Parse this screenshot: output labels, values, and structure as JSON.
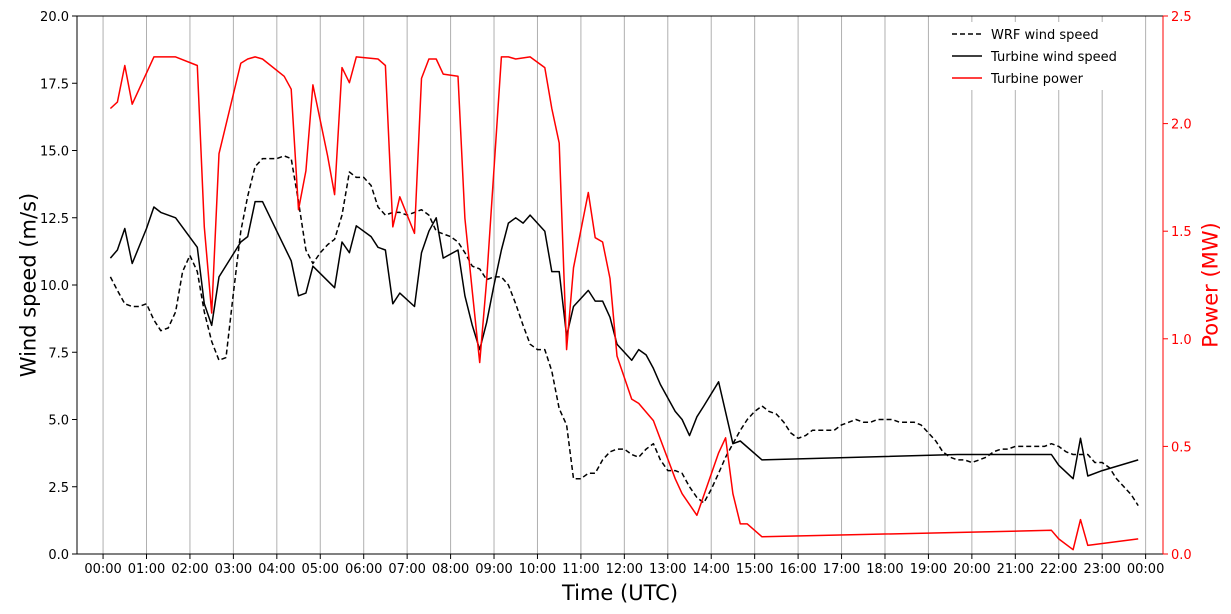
{
  "chart_data": {
    "type": "line",
    "xlabel": "Time (UTC)",
    "ylabel_left": "Wind speed (m/s)",
    "ylabel_right": "Power (MW)",
    "x_unit": "hours",
    "xlim": [
      -0.6,
      24.4
    ],
    "ylim_left": [
      0,
      20
    ],
    "ylim_right": [
      0,
      2.5
    ],
    "grid": "vertical",
    "legend_placement": "top-right",
    "x_ticks": [
      0,
      1,
      2,
      3,
      4,
      5,
      6,
      7,
      8,
      9,
      10,
      11,
      12,
      13,
      14,
      15,
      16,
      17,
      18,
      19,
      20,
      21,
      22,
      23,
      24
    ],
    "x_tick_labels": [
      "00:00",
      "01:00",
      "02:00",
      "03:00",
      "04:00",
      "05:00",
      "06:00",
      "07:00",
      "08:00",
      "09:00",
      "10:00",
      "11:00",
      "12:00",
      "13:00",
      "14:00",
      "15:00",
      "16:00",
      "17:00",
      "18:00",
      "19:00",
      "20:00",
      "21:00",
      "22:00",
      "23:00",
      "00:00"
    ],
    "y_left_ticks": [
      0,
      2.5,
      5,
      7.5,
      10,
      12.5,
      15,
      17.5,
      20
    ],
    "y_left_tick_labels": [
      "0.0",
      "2.5",
      "5.0",
      "7.5",
      "10.0",
      "12.5",
      "15.0",
      "17.5",
      "20.0"
    ],
    "y_right_ticks": [
      0,
      0.5,
      1,
      1.5,
      2,
      2.5
    ],
    "y_right_tick_labels": [
      "0.0",
      "0.5",
      "1.0",
      "1.5",
      "2.0",
      "2.5"
    ],
    "colors": {
      "wrf": "#000000",
      "turbine_ws": "#000000",
      "turbine_power": "#ff0000",
      "axis_right": "#ff0000",
      "grid": "#b0b0b0"
    },
    "series": [
      {
        "name": "WRF wind speed",
        "axis": "left",
        "style": "dashed",
        "color": "#000000",
        "points": [
          [
            0.17,
            10.3
          ],
          [
            0.33,
            9.8
          ],
          [
            0.5,
            9.3
          ],
          [
            0.67,
            9.2
          ],
          [
            0.83,
            9.2
          ],
          [
            1.0,
            9.3
          ],
          [
            1.17,
            8.7
          ],
          [
            1.33,
            8.3
          ],
          [
            1.5,
            8.4
          ],
          [
            1.67,
            9.0
          ],
          [
            1.83,
            10.5
          ],
          [
            2.0,
            11.1
          ],
          [
            2.17,
            10.5
          ],
          [
            2.33,
            9.0
          ],
          [
            2.5,
            7.9
          ],
          [
            2.67,
            7.2
          ],
          [
            2.83,
            7.3
          ],
          [
            3.0,
            9.7
          ],
          [
            3.17,
            12.0
          ],
          [
            3.33,
            13.3
          ],
          [
            3.5,
            14.4
          ],
          [
            3.67,
            14.7
          ],
          [
            3.83,
            14.7
          ],
          [
            4.0,
            14.7
          ],
          [
            4.17,
            14.8
          ],
          [
            4.33,
            14.7
          ],
          [
            4.5,
            13.1
          ],
          [
            4.67,
            11.3
          ],
          [
            4.83,
            10.8
          ],
          [
            5.0,
            11.2
          ],
          [
            5.17,
            11.5
          ],
          [
            5.33,
            11.7
          ],
          [
            5.5,
            12.6
          ],
          [
            5.67,
            14.2
          ],
          [
            5.83,
            14.0
          ],
          [
            6.0,
            14.0
          ],
          [
            6.17,
            13.7
          ],
          [
            6.33,
            12.9
          ],
          [
            6.5,
            12.6
          ],
          [
            6.67,
            12.7
          ],
          [
            6.83,
            12.7
          ],
          [
            7.0,
            12.6
          ],
          [
            7.17,
            12.7
          ],
          [
            7.33,
            12.8
          ],
          [
            7.5,
            12.6
          ],
          [
            7.67,
            12.0
          ],
          [
            7.83,
            11.9
          ],
          [
            8.0,
            11.8
          ],
          [
            8.17,
            11.6
          ],
          [
            8.33,
            11.2
          ],
          [
            8.5,
            10.7
          ],
          [
            8.67,
            10.6
          ],
          [
            8.83,
            10.2
          ],
          [
            9.0,
            10.3
          ],
          [
            9.17,
            10.3
          ],
          [
            9.33,
            10.0
          ],
          [
            9.5,
            9.3
          ],
          [
            9.67,
            8.5
          ],
          [
            9.83,
            7.8
          ],
          [
            10.0,
            7.6
          ],
          [
            10.17,
            7.6
          ],
          [
            10.33,
            6.8
          ],
          [
            10.5,
            5.4
          ],
          [
            10.67,
            4.8
          ],
          [
            10.83,
            2.8
          ],
          [
            11.0,
            2.8
          ],
          [
            11.17,
            3.0
          ],
          [
            11.33,
            3.0
          ],
          [
            11.5,
            3.5
          ],
          [
            11.67,
            3.8
          ],
          [
            11.83,
            3.9
          ],
          [
            12.0,
            3.9
          ],
          [
            12.17,
            3.7
          ],
          [
            12.33,
            3.6
          ],
          [
            12.5,
            3.9
          ],
          [
            12.67,
            4.1
          ],
          [
            12.83,
            3.5
          ],
          [
            13.0,
            3.1
          ],
          [
            13.17,
            3.1
          ],
          [
            13.33,
            3.0
          ],
          [
            13.5,
            2.5
          ],
          [
            13.67,
            2.1
          ],
          [
            13.83,
            1.9
          ],
          [
            14.0,
            2.4
          ],
          [
            14.17,
            3.0
          ],
          [
            14.33,
            3.6
          ],
          [
            14.5,
            4.1
          ],
          [
            14.67,
            4.6
          ],
          [
            14.83,
            5.0
          ],
          [
            15.0,
            5.3
          ],
          [
            15.17,
            5.5
          ],
          [
            15.33,
            5.3
          ],
          [
            15.5,
            5.2
          ],
          [
            15.67,
            4.9
          ],
          [
            15.83,
            4.5
          ],
          [
            16.0,
            4.3
          ],
          [
            16.17,
            4.4
          ],
          [
            16.33,
            4.6
          ],
          [
            16.5,
            4.6
          ],
          [
            16.67,
            4.6
          ],
          [
            16.83,
            4.6
          ],
          [
            17.0,
            4.8
          ],
          [
            17.17,
            4.9
          ],
          [
            17.33,
            5.0
          ],
          [
            17.5,
            4.9
          ],
          [
            17.67,
            4.9
          ],
          [
            17.83,
            5.0
          ],
          [
            18.0,
            5.0
          ],
          [
            18.17,
            5.0
          ],
          [
            18.33,
            4.9
          ],
          [
            18.5,
            4.9
          ],
          [
            18.67,
            4.9
          ],
          [
            18.83,
            4.8
          ],
          [
            19.0,
            4.5
          ],
          [
            19.17,
            4.2
          ],
          [
            19.33,
            3.8
          ],
          [
            19.5,
            3.6
          ],
          [
            19.67,
            3.5
          ],
          [
            19.83,
            3.5
          ],
          [
            20.0,
            3.4
          ],
          [
            20.17,
            3.5
          ],
          [
            20.33,
            3.6
          ],
          [
            20.5,
            3.8
          ],
          [
            20.67,
            3.9
          ],
          [
            20.83,
            3.9
          ],
          [
            21.0,
            4.0
          ],
          [
            21.17,
            4.0
          ],
          [
            21.33,
            4.0
          ],
          [
            21.5,
            4.0
          ],
          [
            21.67,
            4.0
          ],
          [
            21.83,
            4.1
          ],
          [
            22.0,
            4.0
          ],
          [
            22.17,
            3.8
          ],
          [
            22.33,
            3.7
          ],
          [
            22.5,
            3.7
          ],
          [
            22.67,
            3.7
          ],
          [
            22.83,
            3.4
          ],
          [
            23.0,
            3.4
          ],
          [
            23.17,
            3.2
          ],
          [
            23.33,
            2.8
          ],
          [
            23.5,
            2.5
          ],
          [
            23.67,
            2.2
          ],
          [
            23.83,
            1.8
          ]
        ]
      },
      {
        "name": "Turbine wind speed",
        "axis": "left",
        "style": "solid",
        "color": "#000000",
        "points": [
          [
            0.17,
            11.0
          ],
          [
            0.33,
            11.3
          ],
          [
            0.5,
            12.1
          ],
          [
            0.67,
            10.8
          ],
          [
            1.0,
            12.1
          ],
          [
            1.17,
            12.9
          ],
          [
            1.33,
            12.7
          ],
          [
            1.67,
            12.5
          ],
          [
            2.17,
            11.4
          ],
          [
            2.33,
            9.3
          ],
          [
            2.5,
            8.5
          ],
          [
            2.67,
            10.3
          ],
          [
            3.17,
            11.6
          ],
          [
            3.33,
            11.8
          ],
          [
            3.5,
            13.1
          ],
          [
            3.67,
            13.1
          ],
          [
            4.0,
            12.0
          ],
          [
            4.33,
            10.9
          ],
          [
            4.5,
            9.6
          ],
          [
            4.67,
            9.7
          ],
          [
            4.83,
            10.7
          ],
          [
            5.33,
            9.9
          ],
          [
            5.5,
            11.6
          ],
          [
            5.67,
            11.2
          ],
          [
            5.83,
            12.2
          ],
          [
            6.17,
            11.8
          ],
          [
            6.33,
            11.4
          ],
          [
            6.5,
            11.3
          ],
          [
            6.67,
            9.3
          ],
          [
            6.83,
            9.7
          ],
          [
            7.17,
            9.2
          ],
          [
            7.33,
            11.2
          ],
          [
            7.5,
            12.0
          ],
          [
            7.67,
            12.5
          ],
          [
            7.83,
            11.0
          ],
          [
            8.17,
            11.3
          ],
          [
            8.33,
            9.6
          ],
          [
            8.5,
            8.5
          ],
          [
            8.67,
            7.6
          ],
          [
            8.83,
            8.6
          ],
          [
            9.0,
            10.0
          ],
          [
            9.17,
            11.3
          ],
          [
            9.33,
            12.3
          ],
          [
            9.5,
            12.5
          ],
          [
            9.67,
            12.3
          ],
          [
            9.83,
            12.6
          ],
          [
            10.17,
            12.0
          ],
          [
            10.33,
            10.5
          ],
          [
            10.5,
            10.5
          ],
          [
            10.67,
            8.1
          ],
          [
            10.83,
            9.2
          ],
          [
            11.17,
            9.8
          ],
          [
            11.33,
            9.4
          ],
          [
            11.5,
            9.4
          ],
          [
            11.67,
            8.8
          ],
          [
            11.83,
            7.8
          ],
          [
            12.17,
            7.2
          ],
          [
            12.33,
            7.6
          ],
          [
            12.5,
            7.4
          ],
          [
            12.67,
            6.9
          ],
          [
            12.83,
            6.3
          ],
          [
            13.17,
            5.3
          ],
          [
            13.33,
            5.0
          ],
          [
            13.5,
            4.4
          ],
          [
            13.67,
            5.1
          ],
          [
            13.83,
            5.5
          ],
          [
            14.17,
            6.4
          ],
          [
            14.5,
            4.1
          ],
          [
            14.67,
            4.2
          ],
          [
            15.17,
            3.5
          ],
          [
            19.67,
            3.7
          ],
          [
            21.83,
            3.7
          ],
          [
            22.0,
            3.3
          ],
          [
            22.33,
            2.8
          ],
          [
            22.5,
            4.3
          ],
          [
            22.67,
            2.9
          ],
          [
            23.0,
            3.1
          ],
          [
            23.83,
            3.5
          ]
        ]
      },
      {
        "name": "Turbine power",
        "axis": "right",
        "style": "solid",
        "color": "#ff0000",
        "points": [
          [
            0.17,
            2.07
          ],
          [
            0.33,
            2.1
          ],
          [
            0.5,
            2.27
          ],
          [
            0.67,
            2.09
          ],
          [
            1.17,
            2.31
          ],
          [
            1.67,
            2.31
          ],
          [
            2.17,
            2.27
          ],
          [
            2.33,
            1.52
          ],
          [
            2.5,
            1.12
          ],
          [
            2.67,
            1.86
          ],
          [
            3.17,
            2.28
          ],
          [
            3.33,
            2.3
          ],
          [
            3.5,
            2.31
          ],
          [
            3.67,
            2.3
          ],
          [
            4.17,
            2.22
          ],
          [
            4.33,
            2.16
          ],
          [
            4.5,
            1.6
          ],
          [
            4.67,
            1.78
          ],
          [
            4.83,
            2.18
          ],
          [
            5.17,
            1.85
          ],
          [
            5.33,
            1.67
          ],
          [
            5.5,
            2.26
          ],
          [
            5.67,
            2.19
          ],
          [
            5.83,
            2.31
          ],
          [
            6.33,
            2.3
          ],
          [
            6.5,
            2.27
          ],
          [
            6.67,
            1.52
          ],
          [
            6.83,
            1.66
          ],
          [
            7.17,
            1.49
          ],
          [
            7.33,
            2.21
          ],
          [
            7.5,
            2.3
          ],
          [
            7.67,
            2.3
          ],
          [
            7.83,
            2.23
          ],
          [
            8.17,
            2.22
          ],
          [
            8.33,
            1.56
          ],
          [
            8.5,
            1.22
          ],
          [
            8.67,
            0.89
          ],
          [
            8.83,
            1.27
          ],
          [
            9.17,
            2.31
          ],
          [
            9.33,
            2.31
          ],
          [
            9.5,
            2.3
          ],
          [
            9.83,
            2.31
          ],
          [
            10.17,
            2.26
          ],
          [
            10.33,
            2.07
          ],
          [
            10.5,
            1.91
          ],
          [
            10.67,
            0.95
          ],
          [
            10.83,
            1.33
          ],
          [
            11.17,
            1.68
          ],
          [
            11.33,
            1.47
          ],
          [
            11.5,
            1.45
          ],
          [
            11.67,
            1.28
          ],
          [
            11.83,
            0.92
          ],
          [
            12.17,
            0.72
          ],
          [
            12.33,
            0.7
          ],
          [
            12.67,
            0.62
          ],
          [
            13.17,
            0.35
          ],
          [
            13.33,
            0.28
          ],
          [
            13.67,
            0.18
          ],
          [
            14.17,
            0.47
          ],
          [
            14.33,
            0.54
          ],
          [
            14.5,
            0.28
          ],
          [
            14.67,
            0.14
          ],
          [
            14.83,
            0.14
          ],
          [
            15.17,
            0.08
          ],
          [
            21.83,
            0.11
          ],
          [
            22.0,
            0.07
          ],
          [
            22.33,
            0.02
          ],
          [
            22.5,
            0.16
          ],
          [
            22.67,
            0.04
          ],
          [
            23.83,
            0.07
          ]
        ]
      }
    ]
  }
}
